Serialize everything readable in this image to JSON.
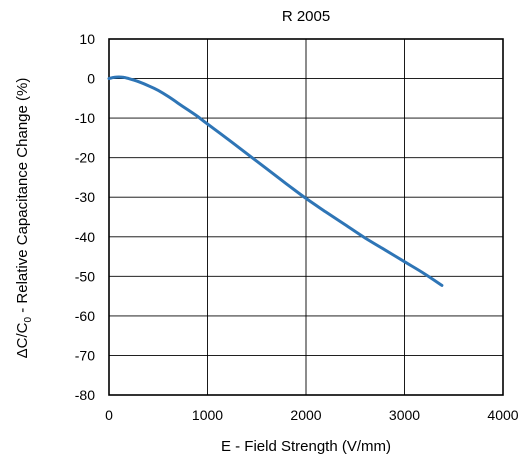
{
  "chart_data": {
    "type": "line",
    "title": "R 2005",
    "xlabel": "E - Field Strength (V/mm)",
    "ylabel_main": "ΔC/C",
    "ylabel_sub": "0",
    "ylabel_rest": " - Relative Capacitance Change (%)",
    "xlim": [
      0,
      4000
    ],
    "ylim": [
      -80,
      10
    ],
    "xticks": [
      0,
      1000,
      2000,
      3000,
      4000
    ],
    "yticks": [
      10,
      0,
      -10,
      -20,
      -30,
      -40,
      -50,
      -60,
      -70,
      -80
    ],
    "grid": true,
    "color": "#2E75B6",
    "series": [
      {
        "x": [
          0,
          50,
          100,
          150,
          200,
          300,
          400,
          500,
          600,
          700,
          800,
          900,
          1000,
          1200,
          1400,
          1600,
          1800,
          2000,
          2200,
          2400,
          2600,
          2800,
          3000,
          3200,
          3380
        ],
        "values": [
          0,
          0.3,
          0.4,
          0.3,
          0,
          -0.8,
          -1.8,
          -3.0,
          -4.5,
          -6.2,
          -7.9,
          -9.6,
          -11.5,
          -15.2,
          -19.0,
          -22.8,
          -26.6,
          -30.3,
          -33.7,
          -37.0,
          -40.3,
          -43.3,
          -46.3,
          -49.3,
          -52.3
        ]
      }
    ]
  }
}
